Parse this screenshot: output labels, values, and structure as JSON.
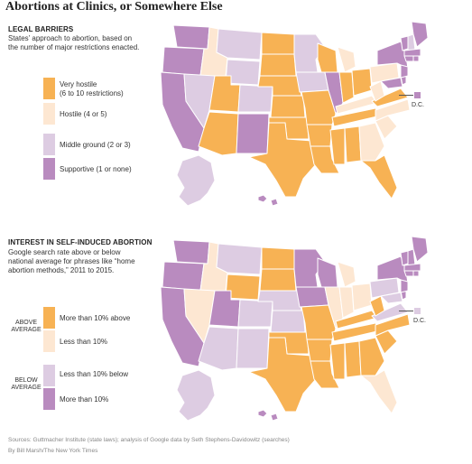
{
  "title": "Abortions at Clinics, or Somewhere Else",
  "colors": {
    "very_hostile": "#f7b254",
    "hostile": "#fde7d2",
    "middle": "#ddcce2",
    "supportive": "#b98bbf",
    "more_above": "#f7b254",
    "less_above": "#fde7d2",
    "less_below": "#ddcce2",
    "more_below": "#b98bbf"
  },
  "legal": {
    "heading": "LEGAL BARRIERS",
    "description": "States’ approach to abortion, based on the number of major restrictions enacted.",
    "legend": [
      {
        "label": "Very hostile",
        "sub": "(6 to 10 restrictions)"
      },
      {
        "label": "Hostile (4 or 5)"
      },
      {
        "label": "Middle ground (2 or 3)"
      },
      {
        "label": "Supportive (1 or none)"
      }
    ],
    "dc_label": "D.C."
  },
  "interest": {
    "heading": "INTEREST IN SELF-INDUCED ABORTION",
    "description": "Google search rate above or below national average for phrases like “home abortion methods,” 2011 to 2015.",
    "above_label": "ABOVE AVERAGE",
    "below_label": "BELOW AVERAGE",
    "legend": [
      {
        "label": "More than 10% above"
      },
      {
        "label": "Less than 10%"
      },
      {
        "label": "Less than 10% below"
      },
      {
        "label": "More than 10%"
      }
    ],
    "dc_label": "D.C."
  },
  "footer": {
    "sources": "Sources: Guttmacher Institute (state laws); analysis of Google data by Seth Stephens-Davidowitz (searches)",
    "byline": "By Bill Marsh/The New York Times"
  }
}
